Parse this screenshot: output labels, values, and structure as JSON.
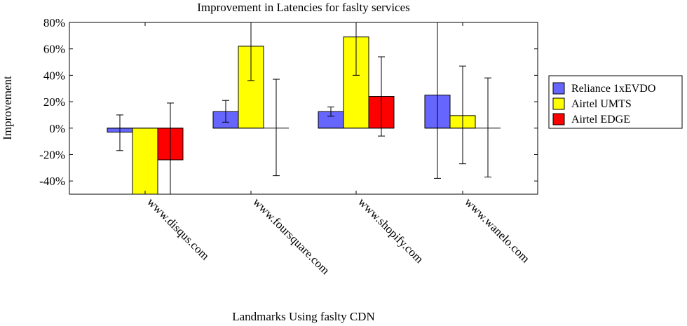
{
  "chart_data": {
    "type": "bar",
    "title": "Improvement in Latencies for faslty services",
    "xlabel": "Landmarks Using faslty CDN",
    "ylabel": "Improvement",
    "ylim": [
      -50,
      80
    ],
    "yticks": [
      -40,
      -20,
      0,
      20,
      40,
      60,
      80
    ],
    "ytick_labels": [
      "-40%",
      "-20%",
      "0%",
      "20%",
      "40%",
      "60%",
      "80%"
    ],
    "categories": [
      "www.disqus.com",
      "www.foursquare.com",
      "www.shopify.com",
      "www.wanelo.com"
    ],
    "series": [
      {
        "name": "Reliance 1xEVDO",
        "color": "#6666ff",
        "values": [
          -3,
          12.5,
          12.5,
          25
        ],
        "err_low": [
          -17,
          4.5,
          9,
          -38
        ],
        "err_high": [
          10,
          21,
          16,
          80
        ]
      },
      {
        "name": "Airtel UMTS",
        "color": "#ffff00",
        "values": [
          -50,
          62,
          69,
          9.5
        ],
        "err_low": [
          -50,
          36,
          40,
          -27
        ],
        "err_high": [
          -50,
          80,
          80,
          47
        ]
      },
      {
        "name": "Airtel EDGE",
        "color": "#ff0000",
        "values": [
          -24,
          0,
          24,
          0
        ],
        "err_low": [
          -50,
          -36,
          -6,
          -37
        ],
        "err_high": [
          19,
          37,
          54,
          38
        ]
      }
    ],
    "grid": false,
    "legend_position": "right"
  }
}
